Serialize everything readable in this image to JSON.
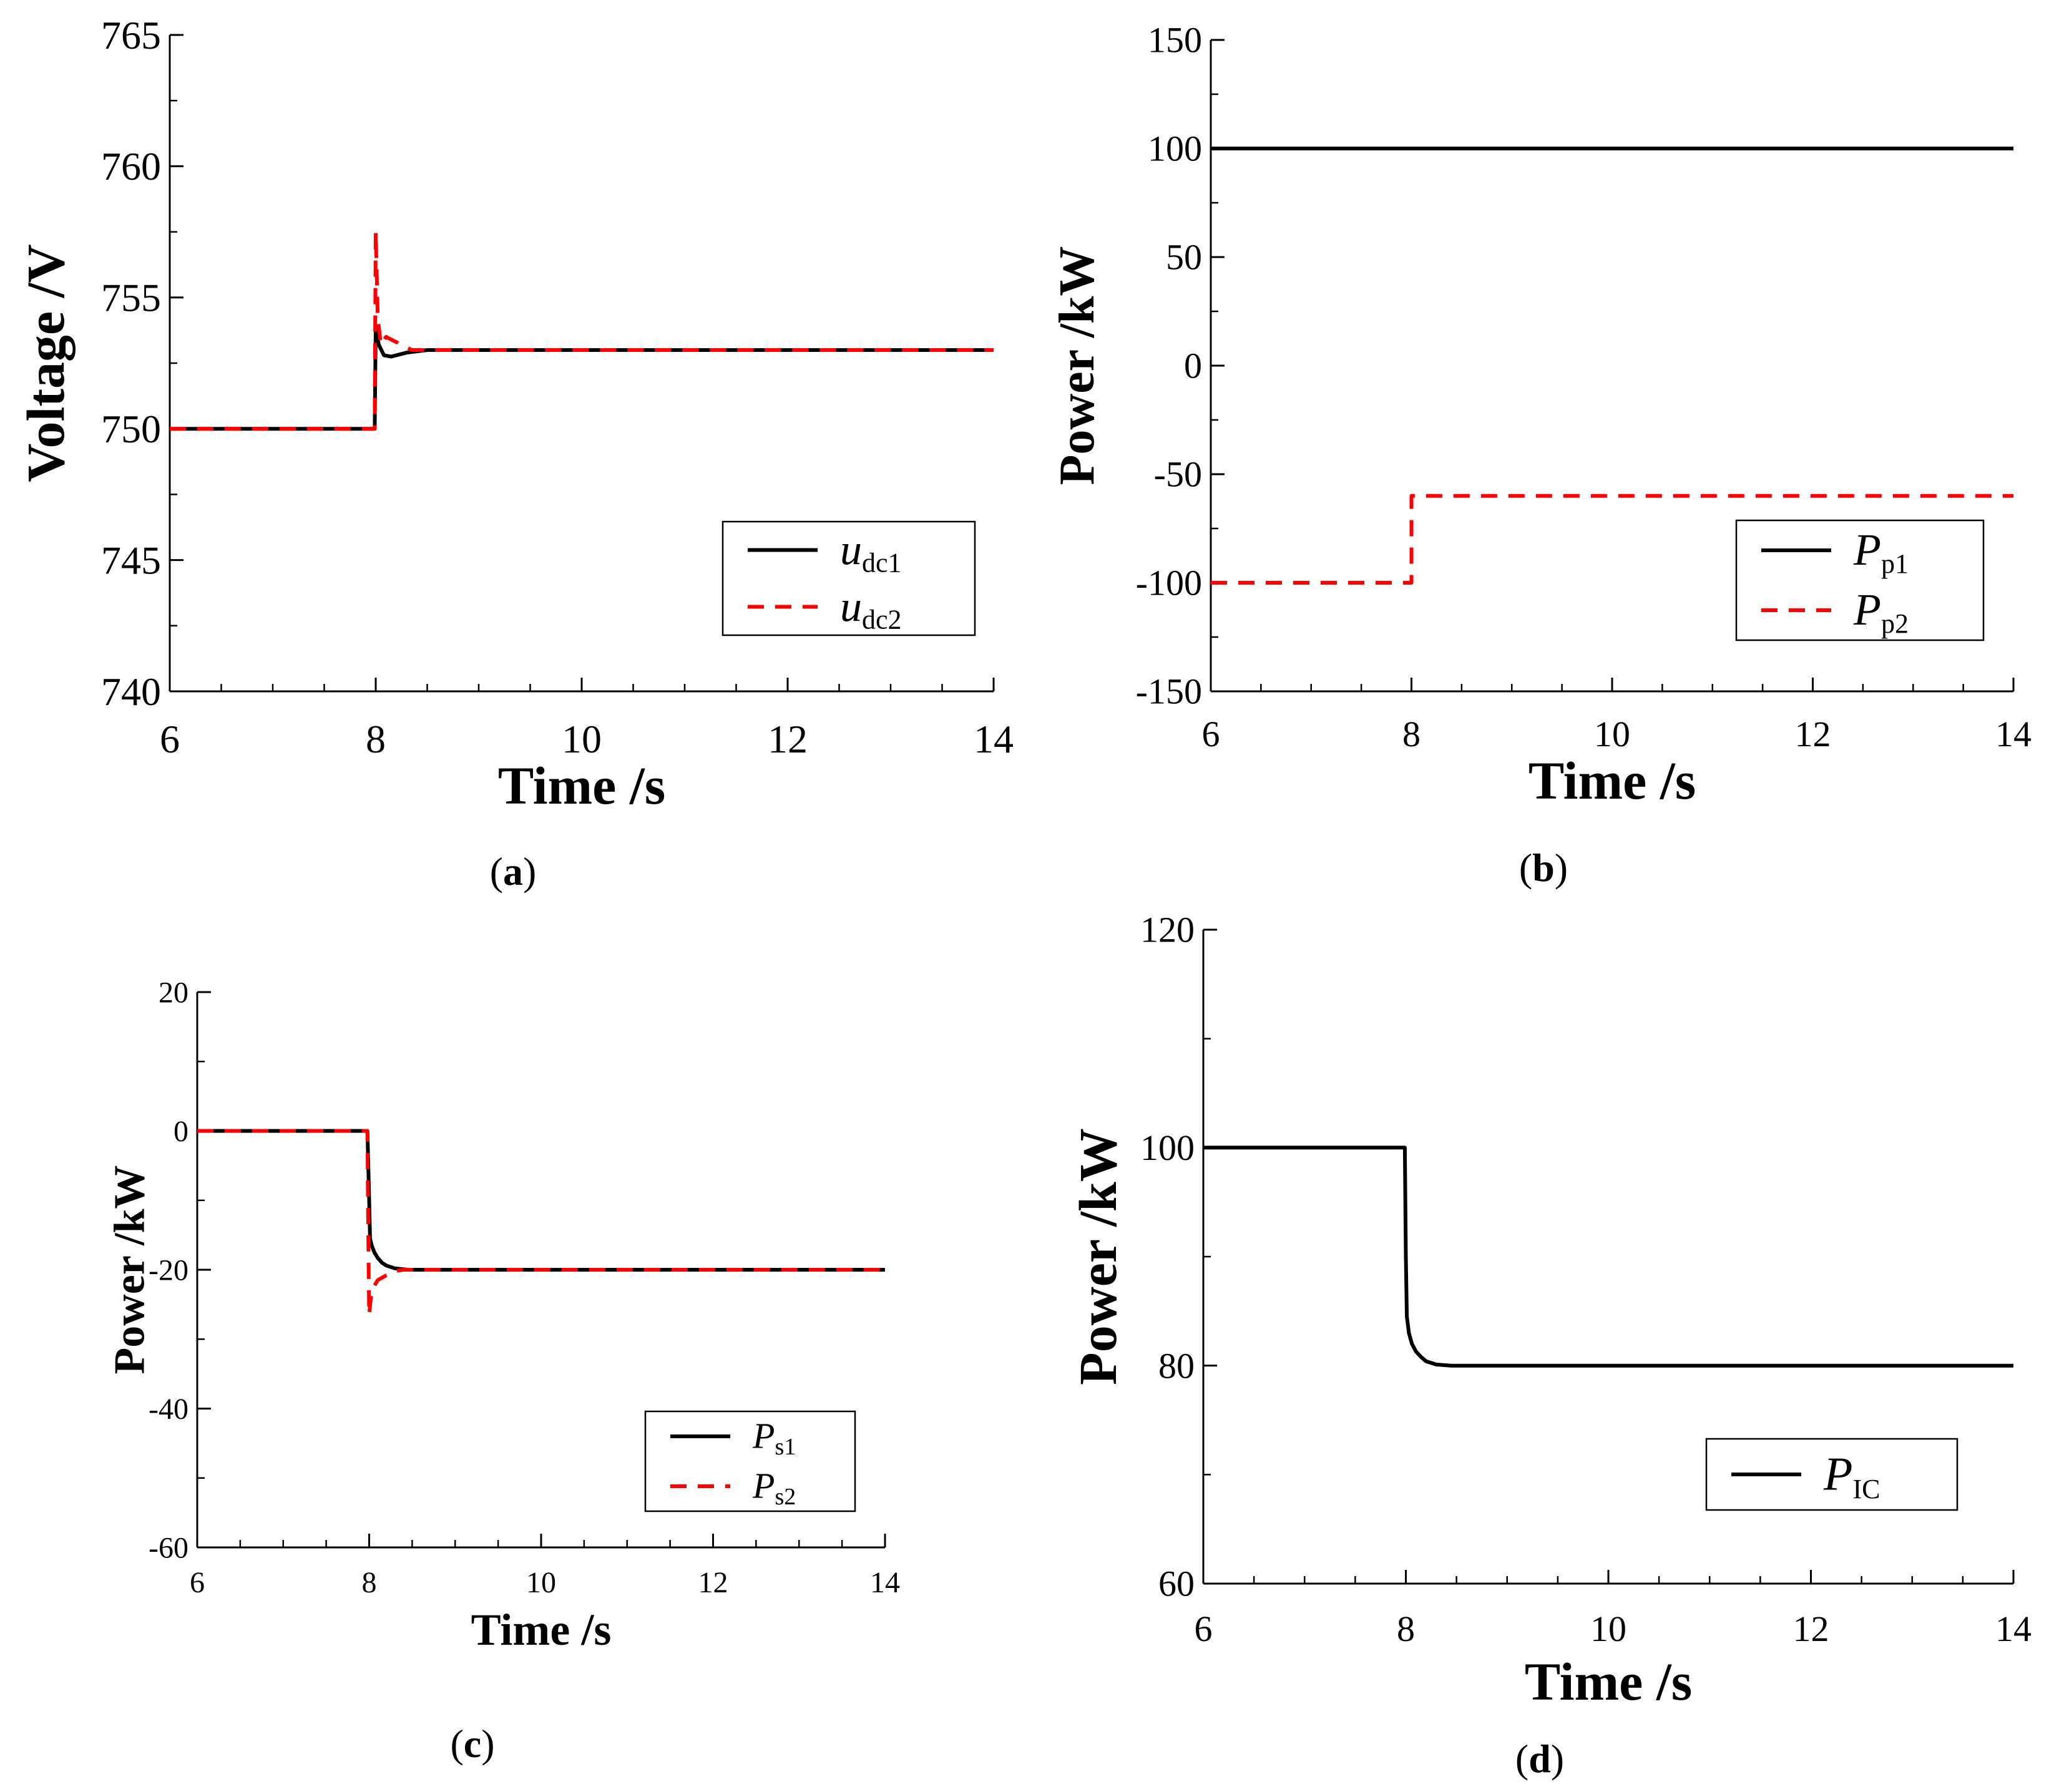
{
  "colors": {
    "black": "#000000",
    "red": "#ff0000",
    "frame": "#000000"
  },
  "chart_data": [
    {
      "id": "a",
      "type": "line",
      "caption": "a",
      "xlabel": "Time /s",
      "ylabel": "Voltage /V",
      "xlim": [
        6,
        14
      ],
      "ylim": [
        740,
        765
      ],
      "xticks": [
        "6",
        "8",
        "10",
        "12",
        "14"
      ],
      "yticks": [
        "740",
        "745",
        "750",
        "755",
        "760",
        "765"
      ],
      "legend": {
        "position": "lower-right",
        "entries": [
          {
            "main": "u",
            "sub": "dc1"
          },
          {
            "main": "u",
            "sub": "dc2"
          }
        ]
      },
      "series": [
        {
          "name": "udc1",
          "style": "solid",
          "color": "#000000",
          "x": [
            6,
            7.99,
            7.995,
            8.0,
            8.03,
            8.08,
            8.15,
            8.3,
            8.5,
            14
          ],
          "y": [
            750,
            750,
            752.0,
            753.8,
            753.2,
            752.8,
            752.75,
            752.9,
            753.0,
            753.0
          ]
        },
        {
          "name": "udc2",
          "style": "dashed",
          "color": "#ff0000",
          "x": [
            6,
            7.99,
            7.995,
            8.0,
            8.02,
            8.05,
            8.1,
            8.2,
            8.35,
            14
          ],
          "y": [
            750,
            750,
            754.0,
            757.5,
            754.2,
            753.2,
            753.5,
            753.3,
            753.0,
            753.0
          ]
        }
      ]
    },
    {
      "id": "b",
      "type": "line",
      "caption": "b",
      "xlabel": "Time /s",
      "ylabel": "Power /kW",
      "xlim": [
        6,
        14
      ],
      "ylim": [
        -150,
        150
      ],
      "xticks": [
        "6",
        "8",
        "10",
        "12",
        "14"
      ],
      "yticks": [
        "-150",
        "-100",
        "-50",
        "0",
        "50",
        "100",
        "150"
      ],
      "legend": {
        "position": "lower-right",
        "entries": [
          {
            "main": "P",
            "sub": "p1"
          },
          {
            "main": "P",
            "sub": "p2"
          }
        ]
      },
      "series": [
        {
          "name": "Pp1",
          "style": "solid",
          "color": "#000000",
          "x": [
            6,
            14
          ],
          "y": [
            100,
            100
          ]
        },
        {
          "name": "Pp2",
          "style": "dashed",
          "color": "#ff0000",
          "x": [
            6,
            8.0,
            8.0,
            14
          ],
          "y": [
            -100,
            -100,
            -60,
            -60
          ]
        }
      ]
    },
    {
      "id": "c",
      "type": "line",
      "caption": "c",
      "xlabel": "Time /s",
      "ylabel": "Power /kW",
      "xlim": [
        6,
        14
      ],
      "ylim": [
        -60,
        20
      ],
      "xticks": [
        "6",
        "8",
        "10",
        "12",
        "14"
      ],
      "yticks": [
        "-60",
        "-40",
        "-20",
        "0",
        "20"
      ],
      "legend": {
        "position": "lower-right",
        "entries": [
          {
            "main": "P",
            "sub": "s1"
          },
          {
            "main": "P",
            "sub": "s2"
          }
        ]
      },
      "series": [
        {
          "name": "Ps1",
          "style": "solid",
          "color": "#000000",
          "x": [
            6,
            7.98,
            8.0,
            8.01,
            8.03,
            8.06,
            8.1,
            8.15,
            8.2,
            8.3,
            8.45,
            8.6,
            14
          ],
          "y": [
            0,
            0,
            -10,
            -15.5,
            -16.5,
            -17.5,
            -18.3,
            -19.0,
            -19.4,
            -19.8,
            -20.0,
            -20.0,
            -20.0
          ]
        },
        {
          "name": "Ps2",
          "style": "dashed",
          "color": "#ff0000",
          "x": [
            6,
            7.98,
            7.99,
            8.0,
            8.02,
            8.05,
            8.1,
            8.2,
            8.3,
            8.4,
            14
          ],
          "y": [
            0,
            0,
            -15,
            -26.5,
            -24.0,
            -22.5,
            -21.5,
            -20.8,
            -20.2,
            -20.0,
            -20.0
          ]
        }
      ]
    },
    {
      "id": "d",
      "type": "line",
      "caption": "d",
      "xlabel": "Time /s",
      "ylabel": "Power /kW",
      "xlim": [
        6,
        14
      ],
      "ylim": [
        60,
        120
      ],
      "xticks": [
        "6",
        "8",
        "10",
        "12",
        "14"
      ],
      "yticks": [
        "60",
        "80",
        "100",
        "120"
      ],
      "legend": {
        "position": "lower-right",
        "entries": [
          {
            "main": "P",
            "sub": "IC"
          }
        ]
      },
      "series": [
        {
          "name": "PIC",
          "style": "solid",
          "color": "#000000",
          "x": [
            6,
            7.99,
            8.0,
            8.01,
            8.03,
            8.06,
            8.1,
            8.15,
            8.2,
            8.3,
            8.45,
            14
          ],
          "y": [
            100,
            100,
            90,
            84.5,
            83.0,
            82.0,
            81.3,
            80.8,
            80.4,
            80.1,
            80.0,
            80.0
          ]
        }
      ]
    }
  ]
}
